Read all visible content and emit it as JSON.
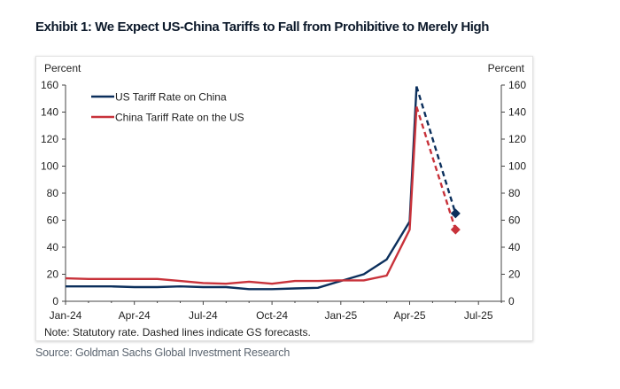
{
  "title": "Exhibit 1: We Expect US-China Tariffs to Fall from Prohibitive to Merely High",
  "source": "Source: Goldman Sachs Global Investment Research",
  "chart_data": {
    "type": "line",
    "title": "Exhibit 1: We Expect US-China Tariffs to Fall from Prohibitive to Merely High",
    "ylabel_left": "Percent",
    "ylabel_right": "Percent",
    "note": "Note: Statutory rate. Dashed lines indicate GS forecasts.",
    "ylim": [
      0,
      160
    ],
    "yticks": [
      0,
      20,
      40,
      60,
      80,
      100,
      120,
      140,
      160
    ],
    "xticks": [
      "Jan-24",
      "Apr-24",
      "Jul-24",
      "Oct-24",
      "Jan-25",
      "Apr-25",
      "Jul-25"
    ],
    "xlim": [
      "2024-01",
      "2025-08"
    ],
    "grid": false,
    "legend_placement": "top-left",
    "series": [
      {
        "name": "US Tariff Rate on China",
        "color": "#0b2f5c",
        "points": [
          [
            "2024-01-01",
            11
          ],
          [
            "2024-02-01",
            11
          ],
          [
            "2024-03-01",
            11
          ],
          [
            "2024-04-01",
            10.5
          ],
          [
            "2024-05-01",
            10.5
          ],
          [
            "2024-06-01",
            11
          ],
          [
            "2024-07-01",
            10.5
          ],
          [
            "2024-08-01",
            10.5
          ],
          [
            "2024-09-01",
            9
          ],
          [
            "2024-10-01",
            9
          ],
          [
            "2024-11-01",
            9.5
          ],
          [
            "2024-12-01",
            10
          ],
          [
            "2025-01-01",
            15
          ],
          [
            "2025-02-01",
            20
          ],
          [
            "2025-03-01",
            31
          ],
          [
            "2025-04-01",
            59
          ],
          [
            "2025-04-10",
            159
          ]
        ],
        "forecast": [
          [
            "2025-04-10",
            159
          ],
          [
            "2025-06-01",
            65
          ]
        ]
      },
      {
        "name": "China Tariff Rate on the US",
        "color": "#c8323a",
        "points": [
          [
            "2024-01-01",
            17
          ],
          [
            "2024-02-01",
            16.5
          ],
          [
            "2024-03-01",
            16.5
          ],
          [
            "2024-04-01",
            16.5
          ],
          [
            "2024-05-01",
            16.5
          ],
          [
            "2024-06-01",
            15
          ],
          [
            "2024-07-01",
            13.5
          ],
          [
            "2024-08-01",
            13
          ],
          [
            "2024-09-01",
            14.5
          ],
          [
            "2024-10-01",
            13
          ],
          [
            "2024-11-01",
            15
          ],
          [
            "2024-12-01",
            15
          ],
          [
            "2025-01-01",
            15.5
          ],
          [
            "2025-02-01",
            15.5
          ],
          [
            "2025-03-01",
            19
          ],
          [
            "2025-04-01",
            53
          ],
          [
            "2025-04-10",
            144
          ]
        ],
        "forecast": [
          [
            "2025-04-10",
            144
          ],
          [
            "2025-06-01",
            53
          ]
        ]
      }
    ]
  }
}
